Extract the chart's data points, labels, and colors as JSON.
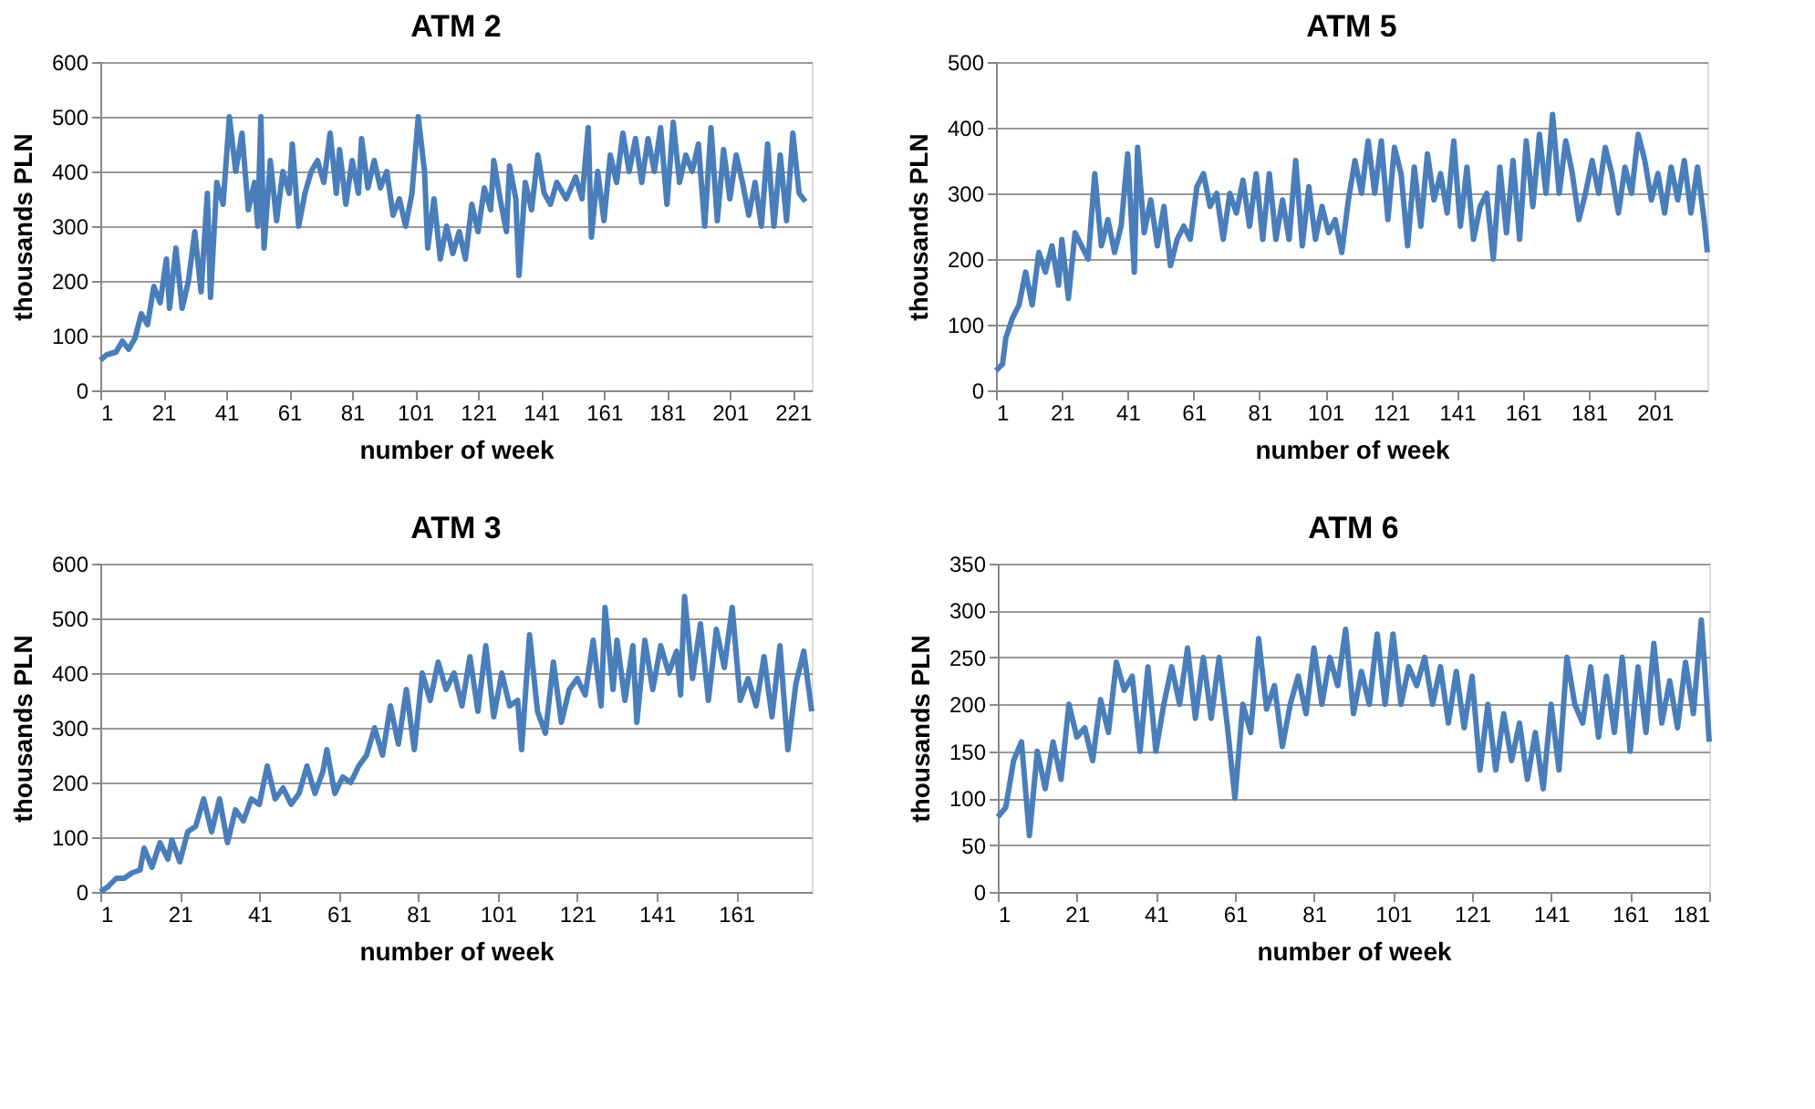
{
  "chart_data": [
    {
      "type": "line",
      "title": "ATM 2",
      "xlabel": "number of week",
      "ylabel": "thousands PLN",
      "xlim": [
        1,
        227
      ],
      "xticks": [
        1,
        21,
        41,
        61,
        81,
        101,
        121,
        141,
        161,
        181,
        201,
        221
      ],
      "ylim": [
        0,
        600
      ],
      "yticks": [
        0,
        100,
        200,
        300,
        400,
        500,
        600
      ],
      "grid": "y",
      "legend": false,
      "series": [
        {
          "color": "#4a7ebb",
          "x": [
            1,
            3,
            6,
            8,
            10,
            12,
            14,
            16,
            18,
            20,
            22,
            23,
            25,
            27,
            29,
            31,
            33,
            35,
            36,
            38,
            40,
            42,
            44,
            46,
            48,
            50,
            51,
            52,
            53,
            55,
            57,
            59,
            61,
            62,
            64,
            66,
            68,
            70,
            72,
            74,
            76,
            77,
            79,
            81,
            83,
            84,
            86,
            88,
            90,
            92,
            94,
            96,
            98,
            100,
            102,
            104,
            105,
            107,
            109,
            111,
            113,
            115,
            117,
            119,
            121,
            123,
            125,
            126,
            128,
            130,
            131,
            133,
            134,
            136,
            138,
            140,
            142,
            144,
            146,
            149,
            152,
            154,
            156,
            157,
            159,
            161,
            163,
            165,
            167,
            169,
            171,
            173,
            175,
            177,
            179,
            181,
            183,
            185,
            187,
            189,
            191,
            193,
            195,
            197,
            199,
            201,
            203,
            205,
            207,
            209,
            211,
            213,
            215,
            217,
            219,
            221,
            223,
            225
          ],
          "values": [
            55,
            65,
            70,
            90,
            75,
            95,
            140,
            120,
            190,
            160,
            240,
            150,
            260,
            150,
            200,
            290,
            180,
            360,
            170,
            380,
            340,
            500,
            400,
            470,
            330,
            380,
            300,
            500,
            260,
            420,
            310,
            400,
            360,
            450,
            300,
            360,
            400,
            420,
            380,
            470,
            360,
            440,
            340,
            420,
            360,
            460,
            370,
            420,
            370,
            400,
            320,
            350,
            300,
            360,
            500,
            400,
            260,
            350,
            240,
            300,
            250,
            290,
            240,
            340,
            290,
            370,
            330,
            420,
            350,
            290,
            410,
            350,
            210,
            380,
            330,
            430,
            360,
            340,
            380,
            350,
            390,
            350,
            480,
            280,
            400,
            310,
            430,
            380,
            470,
            400,
            460,
            380,
            460,
            400,
            480,
            340,
            490,
            380,
            430,
            400,
            450,
            300,
            480,
            310,
            440,
            350,
            430,
            380,
            320,
            380,
            300,
            450,
            300,
            430,
            310,
            470,
            360,
            345
          ]
        }
      ]
    },
    {
      "type": "line",
      "title": "ATM 5",
      "xlabel": "number of week",
      "ylabel": "thousands PLN",
      "xlim": [
        1,
        217
      ],
      "xticks": [
        1,
        21,
        41,
        61,
        81,
        101,
        121,
        141,
        161,
        181,
        201
      ],
      "ylim": [
        0,
        500
      ],
      "yticks": [
        0,
        100,
        200,
        300,
        400,
        500
      ],
      "grid": "y",
      "legend": false,
      "series": [
        {
          "color": "#4a7ebb",
          "x": [
            1,
            3,
            4,
            6,
            8,
            10,
            12,
            14,
            16,
            18,
            20,
            21,
            23,
            25,
            27,
            29,
            31,
            33,
            35,
            37,
            39,
            41,
            43,
            44,
            46,
            48,
            50,
            52,
            54,
            56,
            58,
            60,
            62,
            64,
            66,
            68,
            70,
            72,
            74,
            76,
            78,
            80,
            82,
            84,
            86,
            88,
            90,
            92,
            94,
            96,
            98,
            100,
            102,
            104,
            106,
            108,
            110,
            112,
            114,
            116,
            118,
            120,
            122,
            124,
            126,
            128,
            130,
            132,
            134,
            136,
            138,
            140,
            142,
            144,
            146,
            148,
            150,
            152,
            154,
            156,
            158,
            160,
            162,
            164,
            166,
            168,
            170,
            172,
            174,
            176,
            178,
            180,
            182,
            184,
            186,
            188,
            190,
            192,
            194,
            196,
            198,
            200,
            202,
            204,
            206,
            208,
            210,
            212,
            214,
            216,
            217
          ],
          "values": [
            30,
            40,
            80,
            110,
            130,
            180,
            130,
            210,
            180,
            220,
            160,
            230,
            140,
            240,
            220,
            200,
            330,
            220,
            260,
            210,
            250,
            360,
            180,
            370,
            240,
            290,
            220,
            280,
            190,
            230,
            250,
            230,
            310,
            330,
            280,
            300,
            230,
            300,
            270,
            320,
            250,
            330,
            230,
            330,
            230,
            290,
            230,
            350,
            220,
            310,
            230,
            280,
            240,
            260,
            210,
            290,
            350,
            300,
            380,
            300,
            380,
            260,
            370,
            330,
            220,
            340,
            250,
            360,
            290,
            330,
            270,
            380,
            250,
            340,
            230,
            280,
            300,
            200,
            340,
            240,
            350,
            230,
            380,
            280,
            390,
            300,
            420,
            300,
            380,
            330,
            260,
            300,
            350,
            300,
            370,
            330,
            270,
            340,
            300,
            390,
            350,
            290,
            330,
            270,
            340,
            290,
            350,
            270,
            340,
            260,
            210
          ]
        }
      ]
    },
    {
      "type": "line",
      "title": "ATM 3",
      "xlabel": "number of week",
      "ylabel": "thousands PLN",
      "xlim": [
        1,
        180
      ],
      "xticks": [
        1,
        21,
        41,
        61,
        81,
        101,
        121,
        141,
        161
      ],
      "ylim": [
        0,
        600
      ],
      "yticks": [
        0,
        100,
        200,
        300,
        400,
        500,
        600
      ],
      "grid": "y",
      "legend": false,
      "series": [
        {
          "color": "#4a7ebb",
          "x": [
            1,
            3,
            5,
            7,
            9,
            11,
            12,
            14,
            16,
            18,
            19,
            21,
            23,
            25,
            27,
            29,
            31,
            33,
            35,
            37,
            39,
            41,
            43,
            45,
            47,
            49,
            51,
            53,
            55,
            57,
            58,
            60,
            62,
            64,
            66,
            68,
            70,
            72,
            74,
            76,
            78,
            80,
            82,
            84,
            86,
            88,
            90,
            92,
            94,
            96,
            98,
            100,
            102,
            104,
            106,
            107,
            109,
            111,
            113,
            115,
            117,
            119,
            121,
            123,
            125,
            127,
            128,
            130,
            131,
            133,
            135,
            136,
            138,
            140,
            142,
            144,
            146,
            147,
            148,
            150,
            152,
            154,
            156,
            158,
            160,
            162,
            164,
            166,
            168,
            170,
            172,
            174,
            176,
            178,
            180
          ],
          "values": [
            0,
            10,
            25,
            25,
            35,
            40,
            80,
            45,
            90,
            60,
            95,
            55,
            110,
            120,
            170,
            110,
            170,
            90,
            150,
            130,
            170,
            160,
            230,
            170,
            190,
            160,
            180,
            230,
            180,
            220,
            260,
            180,
            210,
            200,
            230,
            250,
            300,
            250,
            340,
            270,
            370,
            260,
            400,
            350,
            420,
            370,
            400,
            340,
            430,
            330,
            450,
            320,
            400,
            340,
            350,
            260,
            470,
            330,
            290,
            420,
            310,
            370,
            390,
            360,
            460,
            340,
            520,
            370,
            460,
            350,
            450,
            310,
            460,
            370,
            450,
            400,
            440,
            360,
            540,
            390,
            490,
            350,
            480,
            410,
            520,
            350,
            390,
            340,
            430,
            320,
            450,
            260,
            380,
            440,
            330
          ]
        }
      ]
    },
    {
      "type": "line",
      "title": "ATM 6",
      "xlabel": "number of week",
      "ylabel": "thousands PLN",
      "xlim": [
        1,
        181
      ],
      "xticks": [
        1,
        21,
        41,
        61,
        81,
        101,
        121,
        141,
        161,
        181
      ],
      "ylim": [
        0,
        350
      ],
      "yticks": [
        0,
        50,
        100,
        150,
        200,
        250,
        300,
        350
      ],
      "grid": "y",
      "legend": false,
      "series": [
        {
          "color": "#4a7ebb",
          "x": [
            1,
            3,
            5,
            7,
            9,
            11,
            13,
            15,
            17,
            19,
            21,
            23,
            25,
            27,
            29,
            31,
            33,
            35,
            37,
            39,
            41,
            43,
            45,
            47,
            49,
            51,
            53,
            55,
            57,
            59,
            61,
            63,
            65,
            67,
            69,
            71,
            73,
            75,
            77,
            79,
            81,
            83,
            85,
            87,
            89,
            91,
            93,
            95,
            97,
            99,
            101,
            103,
            105,
            107,
            109,
            111,
            113,
            115,
            117,
            119,
            121,
            123,
            125,
            127,
            129,
            131,
            133,
            135,
            137,
            139,
            141,
            143,
            145,
            147,
            149,
            151,
            153,
            155,
            157,
            159,
            161,
            163,
            165,
            167,
            169,
            171,
            173,
            175,
            177,
            179,
            180,
            181
          ],
          "values": [
            80,
            90,
            140,
            160,
            60,
            150,
            110,
            160,
            120,
            200,
            165,
            175,
            140,
            205,
            170,
            245,
            215,
            230,
            150,
            240,
            150,
            200,
            240,
            200,
            260,
            185,
            250,
            185,
            250,
            180,
            100,
            200,
            170,
            270,
            195,
            220,
            155,
            200,
            230,
            190,
            260,
            200,
            250,
            220,
            280,
            190,
            235,
            200,
            275,
            200,
            275,
            200,
            240,
            220,
            250,
            200,
            240,
            180,
            235,
            175,
            230,
            130,
            200,
            130,
            190,
            140,
            180,
            120,
            170,
            110,
            200,
            130,
            250,
            200,
            180,
            240,
            165,
            230,
            170,
            250,
            150,
            240,
            170,
            265,
            180,
            225,
            175,
            245,
            190,
            290,
            230,
            160
          ]
        }
      ]
    }
  ]
}
